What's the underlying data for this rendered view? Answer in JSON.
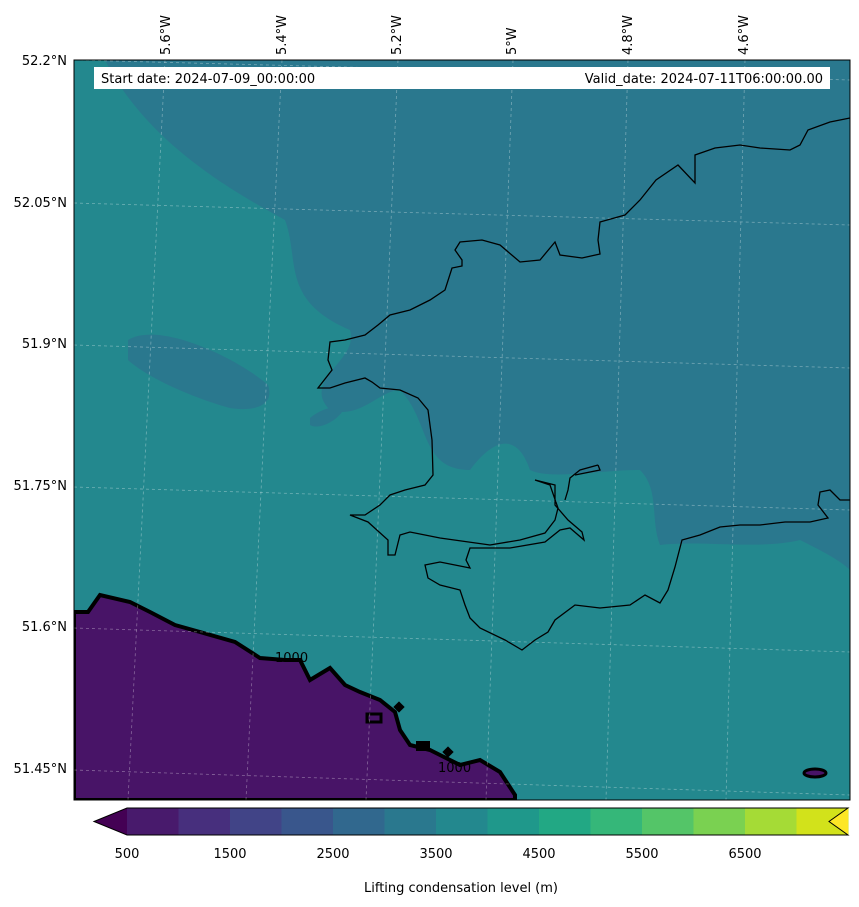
{
  "header": {
    "start_date": "Start date: 2024-07-09_00:00:00",
    "valid_date": "Valid_date: 2024-07-11T06:00:00.00"
  },
  "axes": {
    "lon_labels": [
      "5.6°W",
      "5.4°W",
      "5.2°W",
      "5°W",
      "4.8°W",
      "4.6°W"
    ],
    "lat_labels": [
      "52.2°N",
      "52.05°N",
      "51.9°N",
      "51.75°N",
      "51.6°N",
      "51.45°N"
    ]
  },
  "contour_labels": [
    "1000",
    "1000"
  ],
  "colorbar": {
    "title": "Lifting condensation level (m)",
    "tick_labels": [
      "500",
      "1500",
      "2500",
      "3500",
      "4500",
      "5500",
      "6500"
    ],
    "colors": [
      "#440154",
      "#481a6c",
      "#472f7d",
      "#414487",
      "#39568c",
      "#31688e",
      "#2a788e",
      "#23888e",
      "#1f988b",
      "#22a884",
      "#35b779",
      "#54c568",
      "#7ad151",
      "#a5db36",
      "#d2e21b",
      "#fde725"
    ]
  },
  "field_colors": {
    "level_3000_3500": "#2a788e",
    "level_3500_4000": "#23888e",
    "level_4000_4500": "#1f988b",
    "level_500_1000": "#481467"
  }
}
